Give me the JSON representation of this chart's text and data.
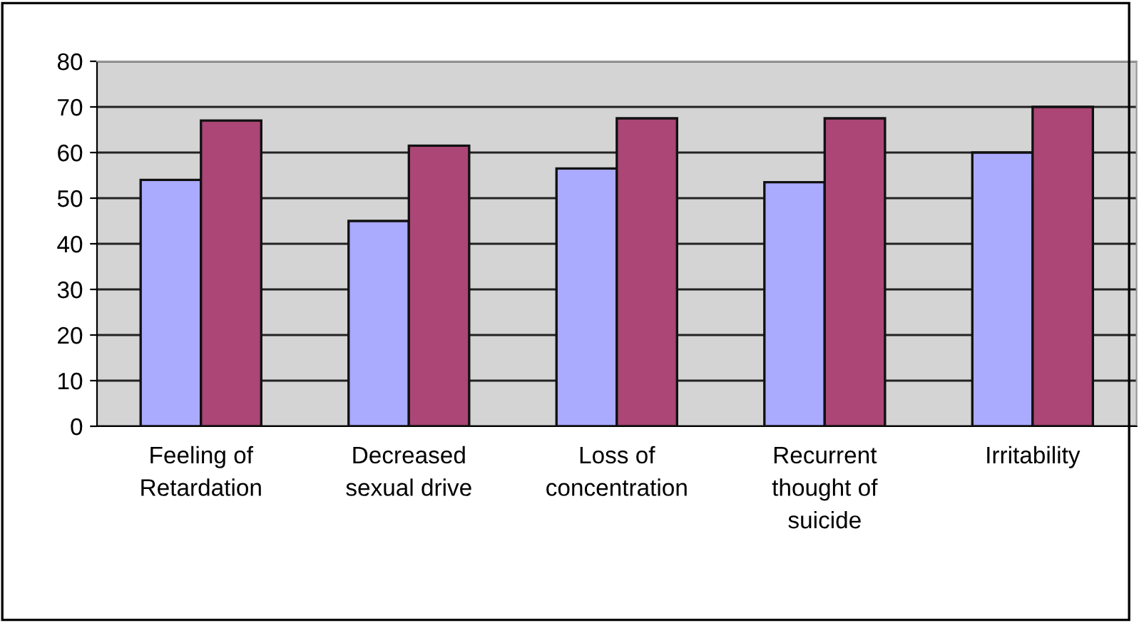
{
  "chart_data": {
    "type": "bar",
    "categories": [
      "Feeling of\nRetardation",
      "Decreased\nsexual drive",
      "Loss of\nconcentration",
      "Recurrent\nthought of\nsuicide",
      "Irritability"
    ],
    "series": [
      {
        "color": "#aaaaff",
        "values": [
          54,
          45,
          56.5,
          53.5,
          60
        ]
      },
      {
        "color": "#ab4676",
        "values": [
          67,
          61.5,
          67.5,
          67.5,
          70
        ]
      }
    ],
    "ylim": [
      0,
      80
    ],
    "yticks": [
      0,
      10,
      20,
      30,
      40,
      50,
      60,
      70,
      80
    ],
    "grid": "y"
  }
}
